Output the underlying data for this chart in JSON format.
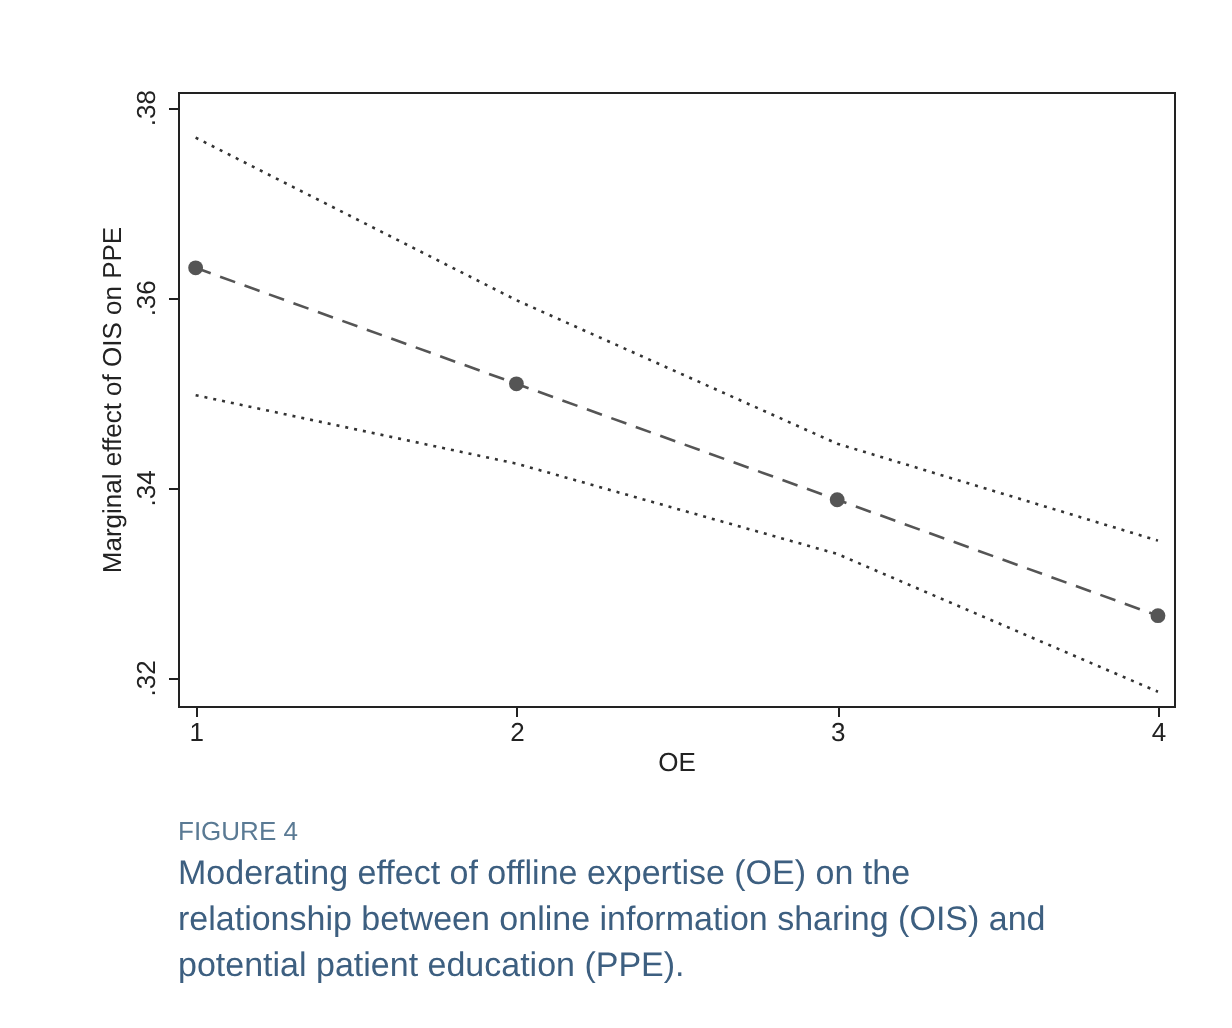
{
  "chart_data": {
    "type": "line",
    "xlabel": "OE",
    "ylabel": "Marginal effect of OIS on PPE",
    "x": [
      1,
      2,
      3,
      4
    ],
    "series": [
      {
        "color": "#555555",
        "values": [
          0.3631,
          0.3509,
          0.3387,
          0.3265
        ],
        "line_style": "dashed",
        "marker": "circle"
      },
      {
        "color": "#333333",
        "values": [
          0.3768,
          0.3597,
          0.3446,
          0.3344
        ],
        "line_style": "dotted",
        "marker": "none"
      },
      {
        "color": "#333333",
        "values": [
          0.3497,
          0.3425,
          0.333,
          0.3185
        ],
        "line_style": "dotted",
        "marker": "none"
      }
    ],
    "xlim": [
      0.945,
      4.05
    ],
    "xticks": [
      1,
      2,
      3,
      4
    ],
    "ylim": [
      0.317,
      0.3816
    ],
    "yticks": [
      {
        "value": 0.32,
        "label": ".32"
      },
      {
        "value": 0.34,
        "label": ".34"
      },
      {
        "value": 0.36,
        "label": ".36"
      },
      {
        "value": 0.38,
        "label": ".38"
      }
    ],
    "grid": false,
    "annotations": [
      "FIGURE 4",
      "Moderating effect of offline expertise (OE) on the relationship between online information sharing (OIS) and potential patient education (PPE)."
    ]
  }
}
